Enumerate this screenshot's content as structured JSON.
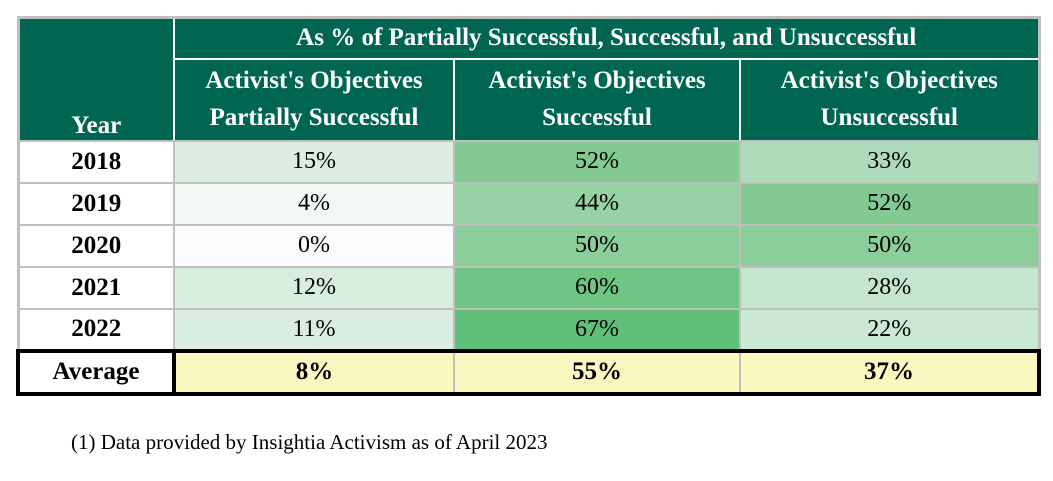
{
  "chart_data": {
    "type": "table",
    "title": "As % of Partially Successful, Successful, and Unsuccessful",
    "columns": [
      "Year",
      "Activist's Objectives Partially Successful",
      "Activist's Objectives Successful",
      "Activist's Objectives Unsuccessful"
    ],
    "rows": [
      [
        "2018",
        15,
        52,
        33
      ],
      [
        "2019",
        4,
        44,
        52
      ],
      [
        "2020",
        0,
        50,
        50
      ],
      [
        "2021",
        12,
        60,
        28
      ],
      [
        "2022",
        11,
        67,
        22
      ],
      [
        "Average",
        8,
        55,
        37
      ]
    ],
    "units": "%",
    "footnote": "(1) Data provided by Insightia Activism as of April 2023",
    "layout_hints": "white-to-green color scale on value cells; average row highlighted pale yellow with thick black border"
  },
  "table": {
    "year_header": "Year",
    "merged_header": "As % of Partially Successful, Successful, and Unsuccessful",
    "columns": [
      {
        "label": "Activist's Objectives\nPartially Successful"
      },
      {
        "label": "Activist's Objectives\nSuccessful"
      },
      {
        "label": "Activist's Objectives\nUnsuccessful"
      }
    ],
    "rows": [
      {
        "year": "2018",
        "values": [
          "15%",
          "52%",
          "33%"
        ],
        "colors": [
          "#DCEEE3",
          "#82CA92",
          "#AEDCBA"
        ]
      },
      {
        "year": "2019",
        "values": [
          "4%",
          "44%",
          "52%"
        ],
        "colors": [
          "#F2F8F4",
          "#97D2A4",
          "#83CA92"
        ]
      },
      {
        "year": "2020",
        "values": [
          "0%",
          "50%",
          "50%"
        ],
        "colors": [
          "#FBFBFE",
          "#8CCE9A",
          "#8CCE9A"
        ]
      },
      {
        "year": "2021",
        "values": [
          "12%",
          "60%",
          "28%"
        ],
        "colors": [
          "#D7EDDE",
          "#6FC583",
          "#C4E6CC"
        ]
      },
      {
        "year": "2022",
        "values": [
          "11%",
          "67%",
          "22%"
        ],
        "colors": [
          "#D9EEE0",
          "#60BF79",
          "#CAE8D2"
        ]
      }
    ],
    "average": {
      "label": "Average",
      "values": [
        "8%",
        "55%",
        "37%"
      ]
    }
  },
  "footnote": "(1) Data provided by Insightia Activism as of April 2023",
  "colors": {
    "header_green": "#006651",
    "average_yellow": "#FAF7C1",
    "grid_gray": "#BFBFBF",
    "border_black": "#000000"
  }
}
